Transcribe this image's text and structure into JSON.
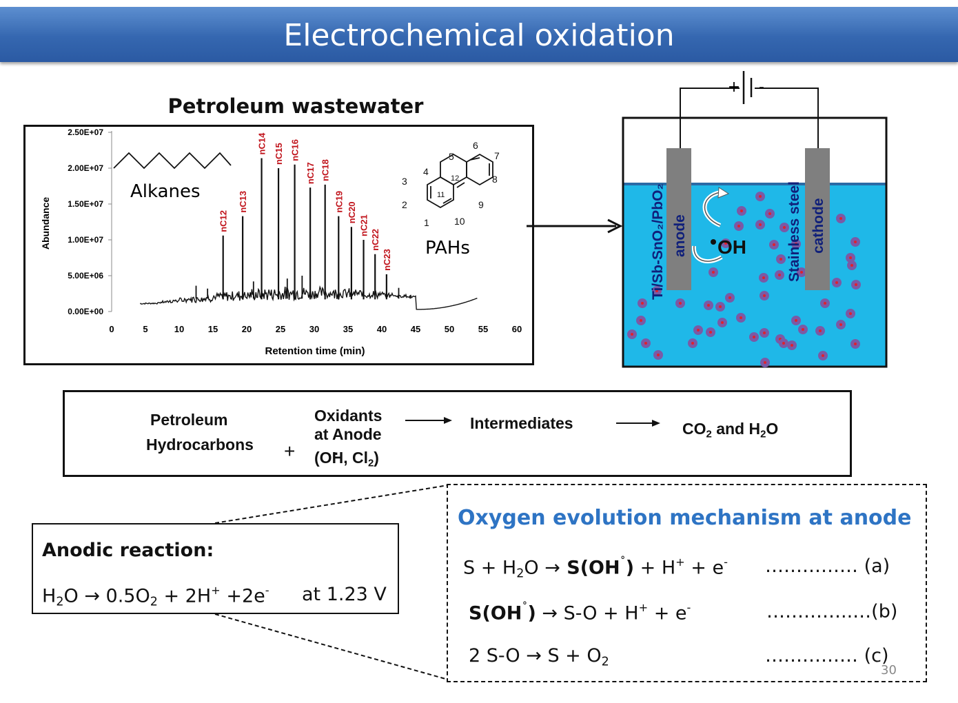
{
  "slide": {
    "title": "Electrochemical oxidation",
    "slide_number": "30"
  },
  "chart_section": {
    "title": "Petroleum wastewater",
    "alkanes_label": "Alkanes",
    "pahs_label": "PAHs",
    "phenanthrene_numbers": [
      "1",
      "2",
      "3",
      "4",
      "5",
      "6",
      "7",
      "8",
      "9",
      "10",
      "11",
      "12"
    ]
  },
  "chart_data": {
    "type": "line",
    "xlabel": "Retention time (min)",
    "ylabel": "Abundance",
    "xlim": [
      0,
      60
    ],
    "ylim": [
      0,
      25000000
    ],
    "x_ticks": [
      "0",
      "5",
      "10",
      "15",
      "20",
      "25",
      "30",
      "35",
      "40",
      "45",
      "50",
      "55",
      "60"
    ],
    "y_ticks": [
      "0.00E+00",
      "5.00E+06",
      "1.00E+07",
      "1.50E+07",
      "2.00E+07",
      "2.50E+07"
    ],
    "peaks": [
      {
        "label": "nC12",
        "x": 16.5,
        "y": 10600000
      },
      {
        "label": "nC13",
        "x": 19.4,
        "y": 13300000
      },
      {
        "label": "nC14",
        "x": 22.2,
        "y": 21400000
      },
      {
        "label": "nC15",
        "x": 24.7,
        "y": 20000000
      },
      {
        "label": "nC16",
        "x": 27.1,
        "y": 20500000
      },
      {
        "label": "nC17",
        "x": 29.4,
        "y": 17300000
      },
      {
        "label": "nC18",
        "x": 31.6,
        "y": 17700000
      },
      {
        "label": "nC19",
        "x": 33.6,
        "y": 13300000
      },
      {
        "label": "nC20",
        "x": 35.5,
        "y": 11800000
      },
      {
        "label": "nC21",
        "x": 37.3,
        "y": 10000000
      },
      {
        "label": "nC22",
        "x": 39.0,
        "y": 8000000
      },
      {
        "label": "nC23",
        "x": 40.7,
        "y": 5200000
      }
    ]
  },
  "cell": {
    "anode_label": "anode",
    "anode_material": "Ti/Sb-SnO₂/PbO₂",
    "cathode_label": "cathode",
    "cathode_material": "Stainless steel",
    "radical": "OH",
    "battery_plus": "+",
    "battery_minus": "-",
    "colors": {
      "electrolyte": "#1fb8e8",
      "electrode": "#7f7f7f",
      "dot": "#7a5aa6",
      "dot_center": "#e0202c"
    }
  },
  "flow": {
    "reactant_line1": "Petroleum",
    "reactant_line2": "Hydrocarbons",
    "plus": "+",
    "oxidants_line1": "Oxidants",
    "oxidants_line2": "at Anode",
    "oxidants_line3_open": "(O",
    "oxidants_line3_h": "H",
    "oxidants_line3_cl": ", Cl",
    "oxidants_line3_sub": "2",
    "oxidants_line3_close": ")",
    "intermediates": "Intermediates",
    "products_co": "CO",
    "products_sub1": "2",
    "products_mid": " and H",
    "products_sub2": "2",
    "products_o": "O"
  },
  "anodic": {
    "title": "Anodic reaction:",
    "eq_h": "H",
    "eq_sub1": "2",
    "eq_o": "O ",
    "eq_arrow": "→",
    "eq_mid": " 0.5O",
    "eq_sub2": "2",
    "eq_rest": " + 2H",
    "eq_sup1": "+",
    "eq_e": " +2e",
    "eq_sup2": "-",
    "voltage": "at 1.23 V"
  },
  "oer": {
    "heading": "Oxygen evolution mechanism at anode",
    "eq_a": {
      "p1": "S + H",
      "sub": "2",
      "p2": "O ",
      "arrow": "→",
      "bold": " S(OH",
      "deg": "˚",
      "bold_close": ")",
      "p3": " + H",
      "sup1": "+",
      "p4": " + e",
      "sup2": "-",
      "tag": "…………… (a)"
    },
    "eq_b": {
      "bold": "S(OH",
      "deg": "˚",
      "bold_close": ")",
      "sp": " ",
      "arrow": "→",
      "p1": " S-O + H",
      "sup1": "+",
      "p2": " + e",
      "sup2": "-",
      "tag": "…………..…(b)"
    },
    "eq_c": {
      "p1": "2 S-O  ",
      "arrow": "→",
      "p2": " S + O",
      "sub": "2",
      "tag": "…………… (c)"
    }
  }
}
